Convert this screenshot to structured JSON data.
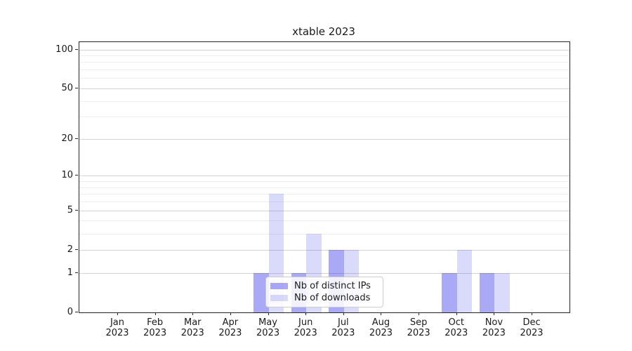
{
  "chart_data": {
    "type": "bar",
    "title": "xtable 2023",
    "categories": [
      "Jan 2023",
      "Feb 2023",
      "Mar 2023",
      "Apr 2023",
      "May 2023",
      "Jun 2023",
      "Jul 2023",
      "Aug 2023",
      "Sep 2023",
      "Oct 2023",
      "Nov 2023",
      "Dec 2023"
    ],
    "series": [
      {
        "name": "Nb of distinct IPs",
        "color": "#a8a8f0",
        "fill": "rgba(51,51,230,0.42)",
        "values": [
          0,
          0,
          0,
          0,
          1,
          1,
          2,
          0,
          0,
          1,
          1,
          0
        ]
      },
      {
        "name": "Nb of downloads",
        "color": "#dadaf8",
        "fill": "rgba(51,51,230,0.18)",
        "values": [
          0,
          0,
          0,
          0,
          7,
          3,
          2,
          0,
          0,
          2,
          1,
          0
        ]
      }
    ],
    "xlabel": "",
    "ylabel": "",
    "yscale": "log1p",
    "ylim": [
      0,
      114
    ],
    "yticks_major": [
      0,
      1,
      2,
      5,
      10,
      20,
      50,
      100
    ],
    "yticks_minor": [
      3,
      4,
      6,
      7,
      8,
      9,
      30,
      40,
      60,
      70,
      80,
      90
    ],
    "grid": true,
    "legend_position": "lower center",
    "colors": {
      "grid_major": "#d3d3d3",
      "grid_minor": "#eeeeee",
      "spine": "#262626",
      "text": "#1a1a1a",
      "legend_border": "#cccccc"
    }
  }
}
